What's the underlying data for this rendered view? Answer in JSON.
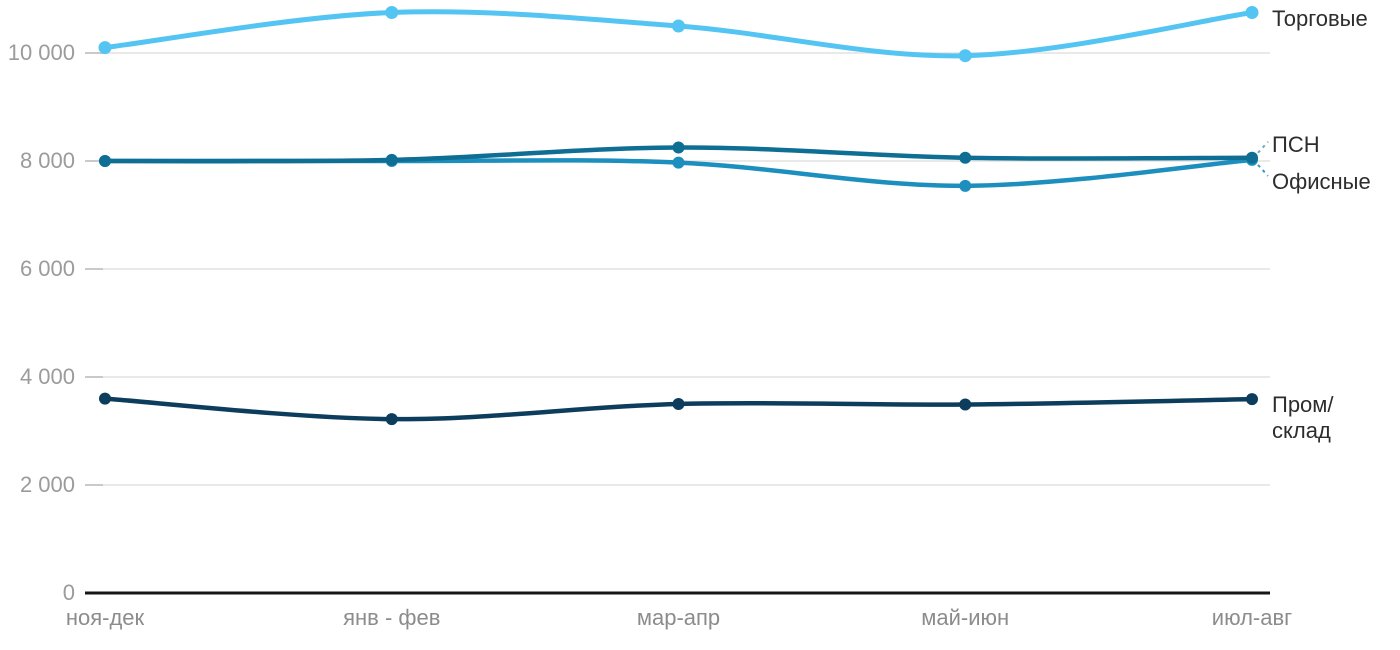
{
  "chart_data": {
    "type": "line",
    "curve": "smooth",
    "title": "",
    "xlabel": "",
    "ylabel": "",
    "categories": [
      "ноя-дек",
      "янв - фев",
      "мар-апр",
      "май-июн",
      "июл-авг"
    ],
    "series": [
      {
        "name": "Торговые",
        "label": "Торговые",
        "color": "#54C5F2",
        "values": [
          10100,
          10750,
          10500,
          9950,
          10750
        ],
        "line_width": 5,
        "dot_radius": 6.5,
        "connector": "none",
        "label_dy": -7
      },
      {
        "name": "Офисные",
        "label": "Офисные",
        "color": "#1C8FBE",
        "values": [
          8000,
          8000,
          7970,
          7540,
          8020
        ],
        "line_width": 4.5,
        "dot_radius": 6,
        "connector": "down",
        "label_dy": 9
      },
      {
        "name": "ПСН",
        "label": "ПСН",
        "color": "#0F6E94",
        "values": [
          8000,
          8020,
          8250,
          8060,
          8060
        ],
        "line_width": 4.5,
        "dot_radius": 6,
        "connector": "up",
        "label_dy": -26
      },
      {
        "name": "Пром/склад",
        "label": "Пром/\nсклад",
        "color": "#0D3D5C",
        "values": [
          3600,
          3220,
          3500,
          3490,
          3590
        ],
        "line_width": 4.5,
        "dot_radius": 6,
        "connector": "none",
        "label_dy": -7
      }
    ],
    "yticks": [
      0,
      2000,
      4000,
      6000,
      8000,
      10000
    ],
    "ytick_labels": [
      "0",
      "2 000",
      "4 000",
      "6 000",
      "8 000",
      "10 000"
    ],
    "ylim": [
      0,
      11000
    ],
    "grid": true,
    "legend_position": "right-end-labels",
    "colors": {
      "gridline": "#e9e9e9",
      "tick": "#c9c9c9",
      "baseline": "#161616",
      "y_label": "#9b9b9b",
      "x_label": "#8c8c8c",
      "series_label": "#2d2d2d",
      "background": "#ffffff"
    }
  }
}
